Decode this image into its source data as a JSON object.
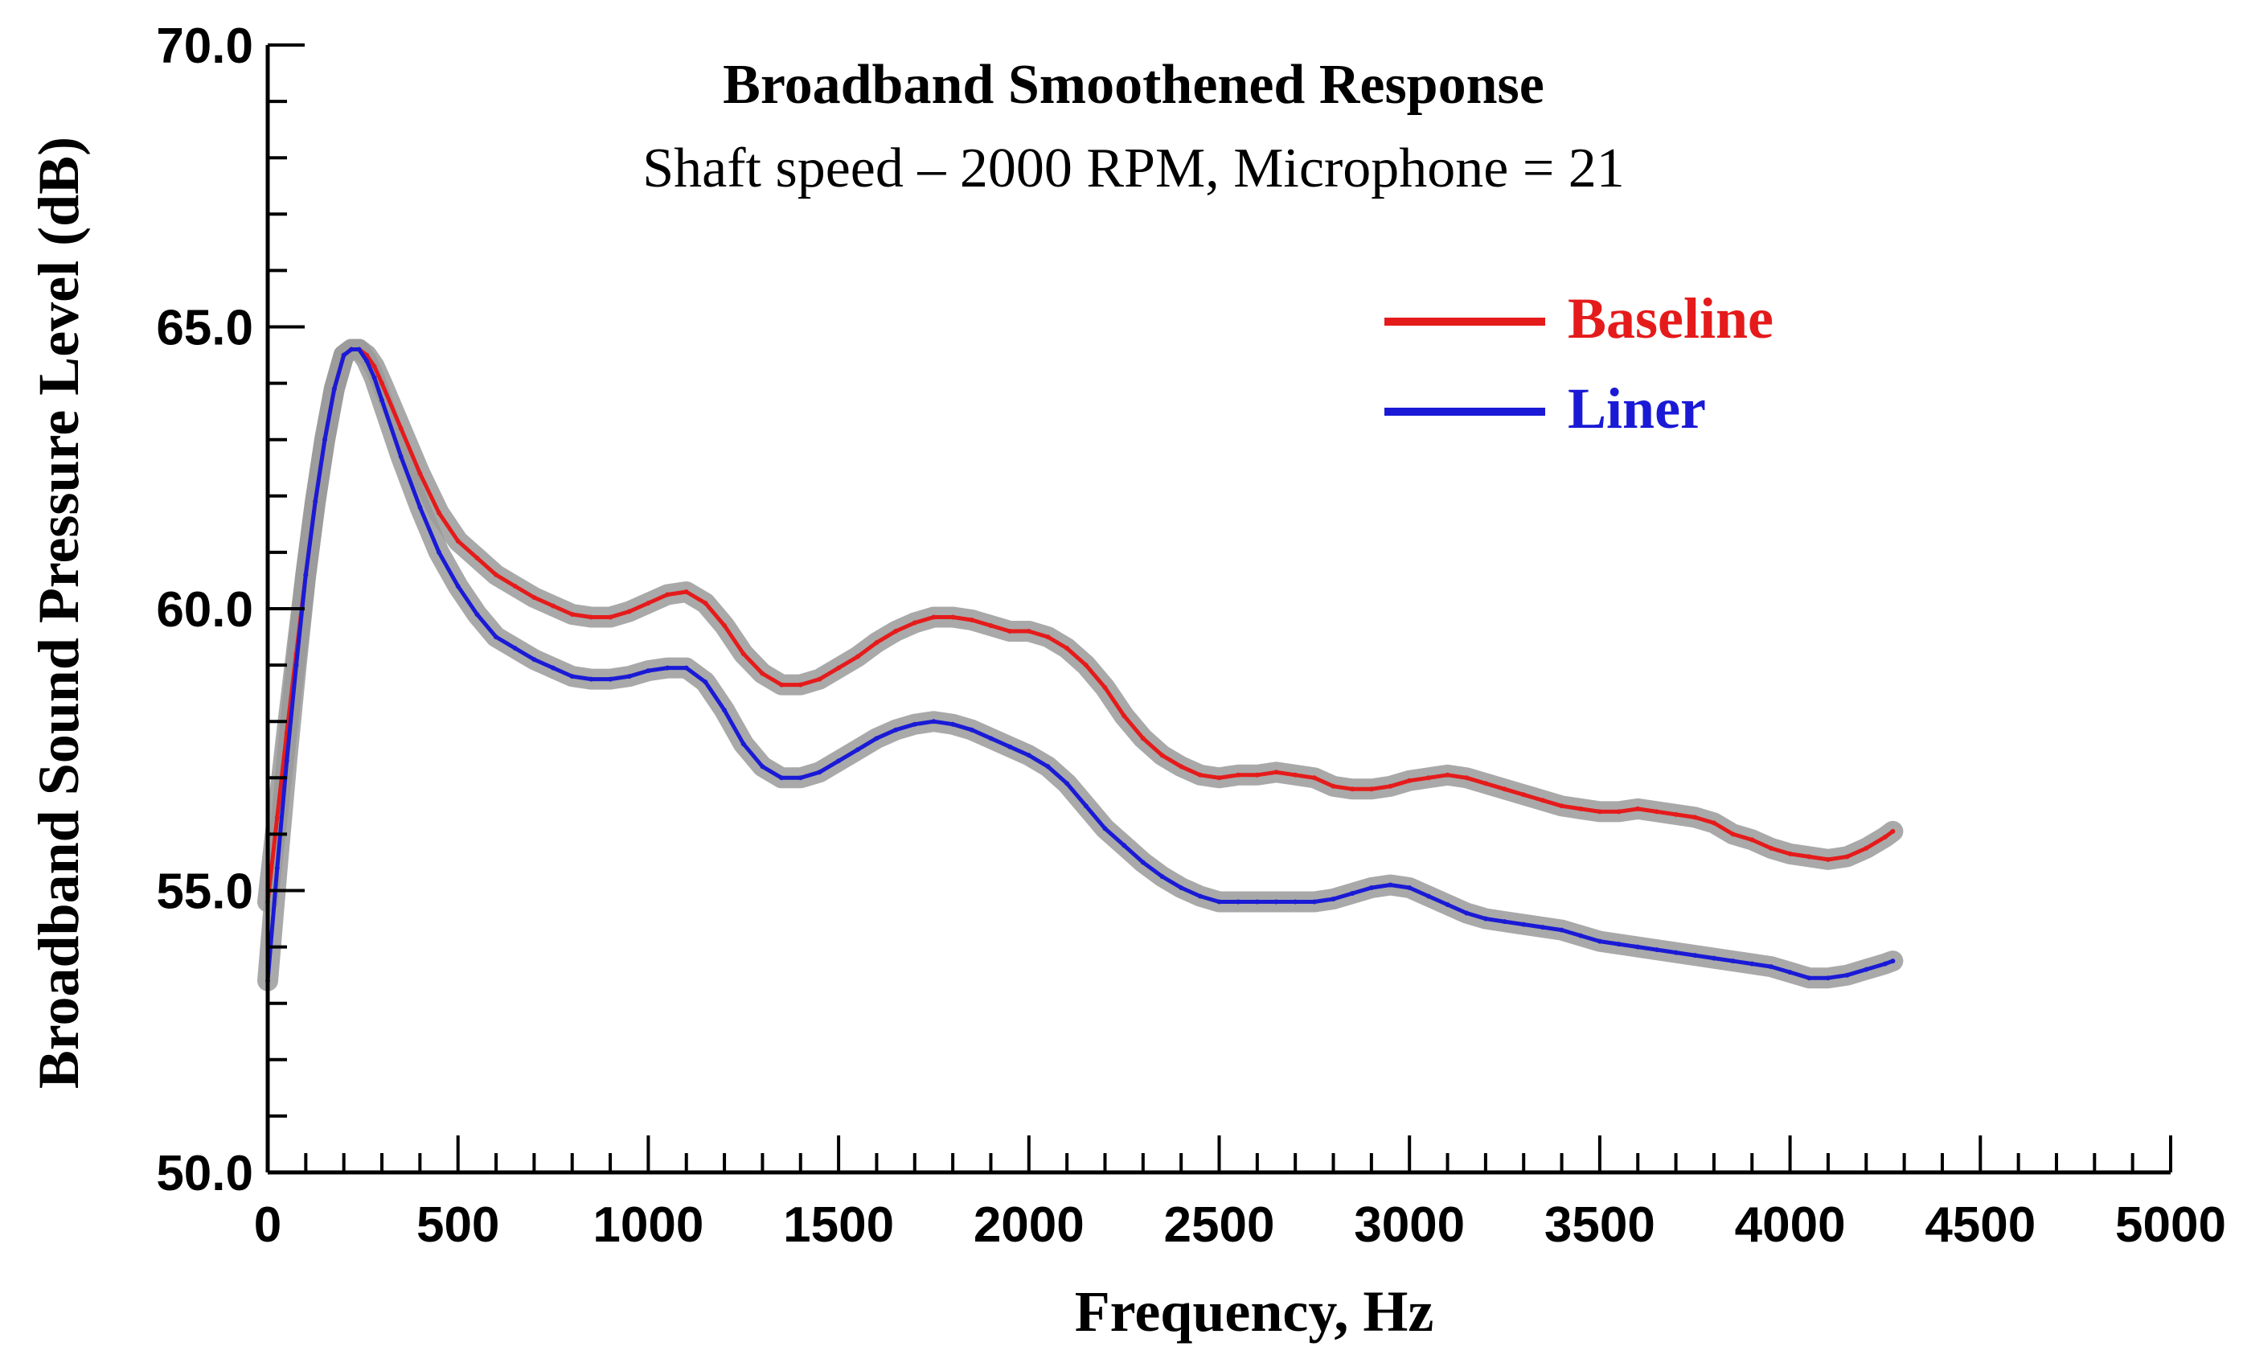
{
  "chart_data": {
    "type": "line",
    "title": "Broadband Smoothened Response",
    "subtitle": "Shaft speed – 2000 RPM, Microphone = 21",
    "xlabel": "Frequency, Hz",
    "ylabel": "Broadband Sound Pressure Level (dB)",
    "xlim": [
      0,
      5000
    ],
    "ylim": [
      50,
      70
    ],
    "x_ticks": [
      0,
      500,
      1000,
      1500,
      2000,
      2500,
      3000,
      3500,
      4000,
      4500,
      5000
    ],
    "x_tick_labels": [
      "0",
      "500",
      "1000",
      "1500",
      "2000",
      "2500",
      "3000",
      "3500",
      "4000",
      "4500",
      "5000"
    ],
    "y_ticks": [
      50,
      55,
      60,
      65,
      70
    ],
    "y_tick_labels": [
      "50.0",
      "55.0",
      "60.0",
      "65.0",
      "70.0"
    ],
    "x_minor_step": 100,
    "y_minor_step": 1,
    "legend_position": "top-right",
    "band_color": "#9a9a9a",
    "series": [
      {
        "name": "Baseline",
        "color": "#e51b1b",
        "x": [
          0,
          25,
          50,
          75,
          100,
          125,
          150,
          175,
          200,
          220,
          240,
          260,
          280,
          300,
          350,
          400,
          450,
          500,
          550,
          600,
          650,
          700,
          750,
          800,
          850,
          900,
          950,
          1000,
          1050,
          1100,
          1150,
          1200,
          1250,
          1300,
          1350,
          1400,
          1450,
          1500,
          1550,
          1600,
          1650,
          1700,
          1750,
          1800,
          1850,
          1900,
          1950,
          2000,
          2050,
          2100,
          2150,
          2200,
          2250,
          2300,
          2350,
          2400,
          2450,
          2500,
          2550,
          2600,
          2650,
          2700,
          2750,
          2800,
          2850,
          2900,
          2950,
          3000,
          3050,
          3100,
          3150,
          3200,
          3250,
          3300,
          3350,
          3400,
          3450,
          3500,
          3550,
          3600,
          3650,
          3700,
          3750,
          3800,
          3850,
          3900,
          3950,
          4000,
          4050,
          4100,
          4150,
          4200,
          4250,
          4270
        ],
        "values": [
          54.8,
          56.3,
          57.8,
          59.2,
          60.6,
          61.9,
          63.0,
          63.9,
          64.5,
          64.6,
          64.6,
          64.5,
          64.3,
          64.0,
          63.2,
          62.4,
          61.7,
          61.2,
          60.9,
          60.6,
          60.4,
          60.2,
          60.05,
          59.9,
          59.85,
          59.85,
          59.95,
          60.1,
          60.25,
          60.3,
          60.1,
          59.7,
          59.2,
          58.85,
          58.65,
          58.65,
          58.75,
          58.95,
          59.15,
          59.4,
          59.6,
          59.75,
          59.85,
          59.85,
          59.8,
          59.7,
          59.6,
          59.6,
          59.5,
          59.3,
          59.0,
          58.6,
          58.1,
          57.7,
          57.4,
          57.2,
          57.05,
          57.0,
          57.05,
          57.05,
          57.1,
          57.05,
          57.0,
          56.85,
          56.8,
          56.8,
          56.85,
          56.95,
          57.0,
          57.05,
          57.0,
          56.9,
          56.8,
          56.7,
          56.6,
          56.5,
          56.45,
          56.4,
          56.4,
          56.45,
          56.4,
          56.35,
          56.3,
          56.2,
          56.0,
          55.9,
          55.75,
          55.65,
          55.6,
          55.55,
          55.6,
          55.75,
          55.95,
          56.05
        ]
      },
      {
        "name": "Liner",
        "color": "#1a1ad6",
        "x": [
          0,
          25,
          50,
          75,
          100,
          125,
          150,
          175,
          200,
          220,
          240,
          260,
          280,
          300,
          350,
          400,
          450,
          500,
          550,
          600,
          650,
          700,
          750,
          800,
          850,
          900,
          950,
          1000,
          1050,
          1100,
          1150,
          1200,
          1250,
          1300,
          1350,
          1400,
          1450,
          1500,
          1550,
          1600,
          1650,
          1700,
          1750,
          1800,
          1850,
          1900,
          1950,
          2000,
          2050,
          2100,
          2150,
          2200,
          2250,
          2300,
          2350,
          2400,
          2450,
          2500,
          2550,
          2600,
          2650,
          2700,
          2750,
          2800,
          2850,
          2900,
          2950,
          3000,
          3050,
          3100,
          3150,
          3200,
          3250,
          3300,
          3350,
          3400,
          3450,
          3500,
          3550,
          3600,
          3650,
          3700,
          3750,
          3800,
          3850,
          3900,
          3950,
          4000,
          4050,
          4100,
          4150,
          4200,
          4250,
          4270
        ],
        "values": [
          53.4,
          55.4,
          57.3,
          59.0,
          60.6,
          61.9,
          63.0,
          63.9,
          64.5,
          64.6,
          64.6,
          64.4,
          64.1,
          63.7,
          62.7,
          61.8,
          61.0,
          60.4,
          59.9,
          59.5,
          59.3,
          59.1,
          58.95,
          58.8,
          58.75,
          58.75,
          58.8,
          58.9,
          58.95,
          58.95,
          58.7,
          58.2,
          57.6,
          57.2,
          57.0,
          57.0,
          57.1,
          57.3,
          57.5,
          57.7,
          57.85,
          57.95,
          58.0,
          57.95,
          57.85,
          57.7,
          57.55,
          57.4,
          57.2,
          56.9,
          56.5,
          56.1,
          55.8,
          55.5,
          55.25,
          55.05,
          54.9,
          54.8,
          54.8,
          54.8,
          54.8,
          54.8,
          54.8,
          54.85,
          54.95,
          55.05,
          55.1,
          55.05,
          54.9,
          54.75,
          54.6,
          54.5,
          54.45,
          54.4,
          54.35,
          54.3,
          54.2,
          54.1,
          54.05,
          54.0,
          53.95,
          53.9,
          53.85,
          53.8,
          53.75,
          53.7,
          53.65,
          53.55,
          53.45,
          53.45,
          53.5,
          53.6,
          53.7,
          53.75
        ]
      }
    ]
  }
}
